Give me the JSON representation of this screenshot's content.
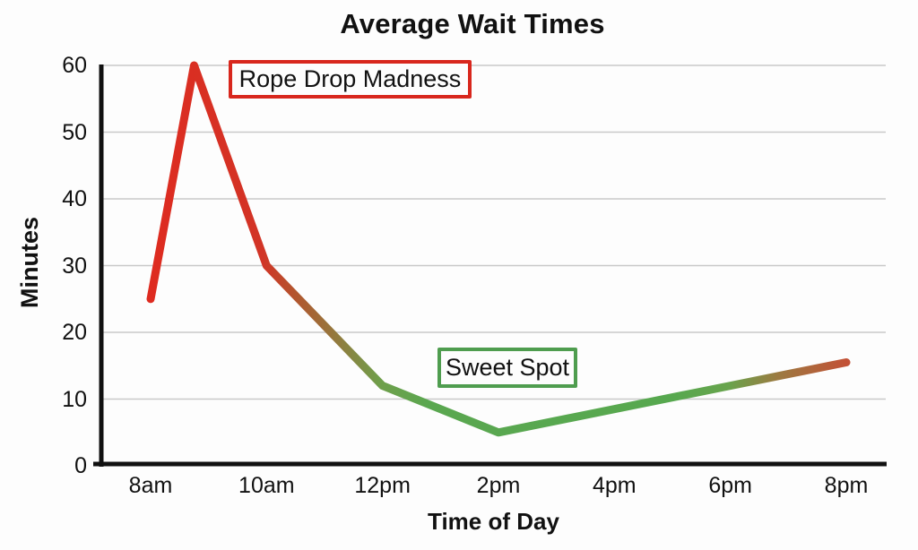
{
  "page": {
    "background": "#fdfdfd"
  },
  "chart_data": {
    "type": "line",
    "title": "Average Wait Times",
    "xlabel": "Time of Day",
    "ylabel": "Minutes",
    "categories": [
      "8am",
      "10am",
      "12pm",
      "2pm",
      "4pm",
      "6pm",
      "8pm"
    ],
    "category_hours": [
      0,
      2,
      4,
      6,
      8,
      10,
      12
    ],
    "x_hours": [
      0,
      0.75,
      2,
      4,
      6,
      8,
      10,
      12
    ],
    "values": [
      25,
      60,
      30,
      12,
      5,
      8.5,
      12,
      15.5
    ],
    "yticks": [
      0,
      10,
      20,
      30,
      40,
      50,
      60
    ],
    "ylim": [
      0,
      60
    ],
    "x_range": [
      0,
      12
    ],
    "grid": "horizontal",
    "legend": "none",
    "line_width": 9,
    "axis_color": "#111111",
    "grid_color": "#c9c9c9",
    "line_gradient": [
      {
        "offset": 0,
        "color": "#de2b20"
      },
      {
        "offset": 0.16,
        "color": "#d23426"
      },
      {
        "offset": 0.21,
        "color": "#b1572f"
      },
      {
        "offset": 0.26,
        "color": "#97763c"
      },
      {
        "offset": 0.33,
        "color": "#6f9f4b"
      },
      {
        "offset": 0.4,
        "color": "#5aa750"
      },
      {
        "offset": 0.75,
        "color": "#57a84f"
      },
      {
        "offset": 0.83,
        "color": "#68a44d"
      },
      {
        "offset": 0.9,
        "color": "#9b7b41"
      },
      {
        "offset": 1,
        "color": "#c25136"
      }
    ],
    "annotations": [
      {
        "label": "Rope Drop Madness",
        "border_color": "#d8271d",
        "text_color": "#111111"
      },
      {
        "label": "Sweet Spot",
        "border_color": "#4f9d4f",
        "text_color": "#111111"
      }
    ]
  }
}
